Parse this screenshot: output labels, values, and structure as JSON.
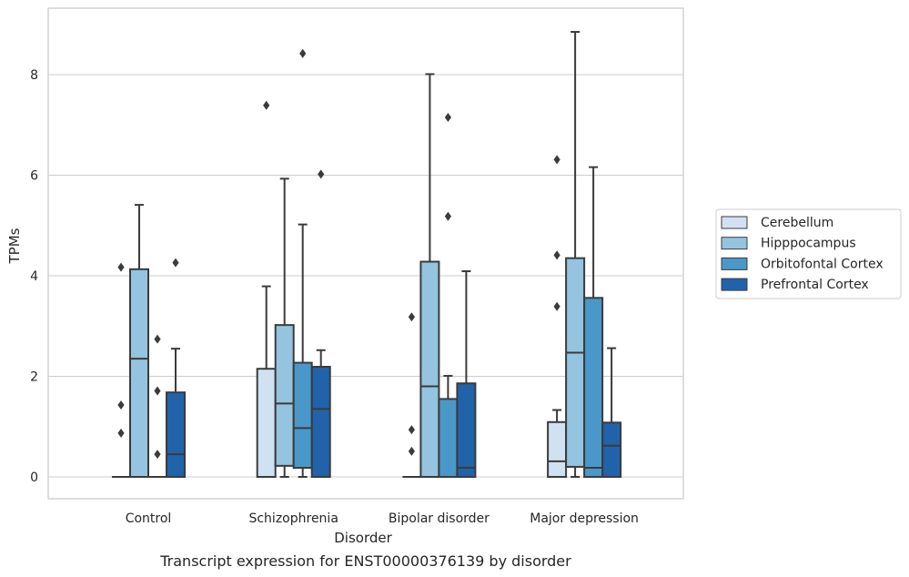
{
  "caption": "Transcript expression for ENST00000376139 by disorder",
  "chart_data": {
    "type": "box",
    "xlabel": "Disorder",
    "ylabel": "TPMs",
    "ylim": [
      -0.45,
      9.3
    ],
    "yticks": [
      0,
      2,
      4,
      6,
      8
    ],
    "grid": true,
    "legend_position": "right",
    "categories": [
      "Control",
      "Schizophrenia",
      "Bipolar disorder",
      "Major depression"
    ],
    "series": [
      {
        "name": "Cerebellum",
        "color": "#d0e1f2",
        "boxes": [
          {
            "q1": 0,
            "median": 0,
            "q3": 0,
            "whisker_low": 0,
            "whisker_high": 0,
            "outliers": [
              0.87,
              1.43,
              4.17
            ]
          },
          {
            "q1": 0,
            "median": 0,
            "q3": 2.15,
            "whisker_low": 0,
            "whisker_high": 3.79,
            "outliers": [
              7.39
            ]
          },
          {
            "q1": 0,
            "median": 0,
            "q3": 0,
            "whisker_low": 0,
            "whisker_high": 0,
            "outliers": [
              0.51,
              0.94,
              3.18
            ]
          },
          {
            "q1": 0,
            "median": 0.31,
            "q3": 1.09,
            "whisker_low": 0,
            "whisker_high": 1.33,
            "outliers": [
              3.39,
              4.41,
              6.31
            ]
          }
        ]
      },
      {
        "name": "Hipppocampus",
        "color": "#94c4df",
        "boxes": [
          {
            "q1": 0,
            "median": 2.35,
            "q3": 4.13,
            "whisker_low": 0,
            "whisker_high": 5.41,
            "outliers": []
          },
          {
            "q1": 0.22,
            "median": 1.46,
            "q3": 3.02,
            "whisker_low": 0,
            "whisker_high": 5.93,
            "outliers": []
          },
          {
            "q1": 0,
            "median": 1.8,
            "q3": 4.28,
            "whisker_low": 0,
            "whisker_high": 8.01,
            "outliers": []
          },
          {
            "q1": 0.2,
            "median": 2.47,
            "q3": 4.35,
            "whisker_low": 0,
            "whisker_high": 8.85,
            "outliers": []
          }
        ]
      },
      {
        "name": "Orbitofontal Cortex",
        "color": "#4a98c9",
        "boxes": [
          {
            "q1": 0,
            "median": 0,
            "q3": 0,
            "whisker_low": 0,
            "whisker_high": 0,
            "outliers": [
              0.45,
              1.71,
              2.74
            ]
          },
          {
            "q1": 0.18,
            "median": 0.97,
            "q3": 2.27,
            "whisker_low": 0,
            "whisker_high": 5.02,
            "outliers": [
              8.42
            ]
          },
          {
            "q1": 0,
            "median": 0,
            "q3": 1.55,
            "whisker_low": 0,
            "whisker_high": 2.01,
            "outliers": [
              5.18,
              7.15
            ]
          },
          {
            "q1": 0,
            "median": 0.18,
            "q3": 3.56,
            "whisker_low": 0,
            "whisker_high": 6.16,
            "outliers": []
          }
        ]
      },
      {
        "name": "Prefrontal Cortex",
        "color": "#2163aa",
        "boxes": [
          {
            "q1": 0,
            "median": 0.45,
            "q3": 1.68,
            "whisker_low": 0,
            "whisker_high": 2.55,
            "outliers": [
              4.26
            ]
          },
          {
            "q1": 0,
            "median": 1.35,
            "q3": 2.19,
            "whisker_low": 0,
            "whisker_high": 2.52,
            "outliers": [
              6.02
            ]
          },
          {
            "q1": 0,
            "median": 0.18,
            "q3": 1.86,
            "whisker_low": 0,
            "whisker_high": 4.09,
            "outliers": []
          },
          {
            "q1": 0,
            "median": 0.62,
            "q3": 1.08,
            "whisker_low": 0,
            "whisker_high": 2.56,
            "outliers": []
          }
        ]
      }
    ]
  }
}
